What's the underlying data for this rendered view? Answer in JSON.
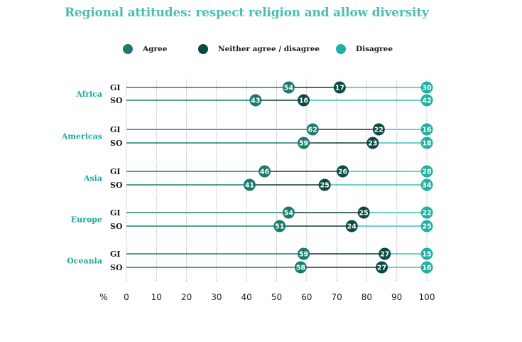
{
  "chart_data": {
    "type": "dot-range",
    "title": "Regional attitudes: respect religion and allow diversity",
    "xlabel": "%",
    "xlim": [
      0,
      100
    ],
    "xticks": [
      0,
      10,
      20,
      30,
      40,
      50,
      60,
      70,
      80,
      90,
      100
    ],
    "grid": "vertical dotted",
    "legend_position": "top",
    "legend": [
      {
        "key": "agree",
        "label": "Agree",
        "color": "#1a7a6e"
      },
      {
        "key": "neither",
        "label": "Neither agree / disagree",
        "color": "#0b4a44"
      },
      {
        "key": "disagree",
        "label": "Disagree",
        "color": "#22b0a3"
      }
    ],
    "row_labels": [
      "GI",
      "SO"
    ],
    "regions": [
      {
        "name": "Africa",
        "rows": [
          {
            "label": "GI",
            "agree": 54,
            "neither": 17,
            "disagree": 30
          },
          {
            "label": "SO",
            "agree": 43,
            "neither": 16,
            "disagree": 42
          }
        ]
      },
      {
        "name": "Americas",
        "rows": [
          {
            "label": "GI",
            "agree": 62,
            "neither": 22,
            "disagree": 16
          },
          {
            "label": "SO",
            "agree": 59,
            "neither": 23,
            "disagree": 18
          }
        ]
      },
      {
        "name": "Asia",
        "rows": [
          {
            "label": "GI",
            "agree": 46,
            "neither": 26,
            "disagree": 28
          },
          {
            "label": "SO",
            "agree": 41,
            "neither": 25,
            "disagree": 34
          }
        ]
      },
      {
        "name": "Europe",
        "rows": [
          {
            "label": "GI",
            "agree": 54,
            "neither": 25,
            "disagree": 22
          },
          {
            "label": "SO",
            "agree": 51,
            "neither": 24,
            "disagree": 25
          }
        ]
      },
      {
        "name": "Oceania",
        "rows": [
          {
            "label": "GI",
            "agree": 59,
            "neither": 27,
            "disagree": 15
          },
          {
            "label": "SO",
            "agree": 58,
            "neither": 27,
            "disagree": 16
          }
        ]
      }
    ],
    "line_colors": {
      "agree": "#1f7f74",
      "neither": "#0f3d38",
      "disagree": "#3fc2b6"
    }
  }
}
